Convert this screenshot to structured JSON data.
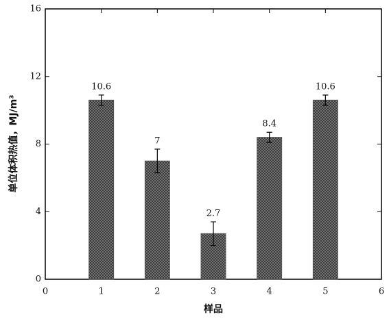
{
  "chart_data": {
    "type": "bar",
    "x_label": "样品",
    "y_label": "单位体积热值，MJ/m³",
    "x": [
      1,
      2,
      3,
      4,
      5
    ],
    "values": [
      10.6,
      7,
      2.7,
      8.4,
      10.6
    ],
    "errors": [
      0.3,
      0.7,
      0.7,
      0.3,
      0.3
    ],
    "color": "#555555",
    "xlim": [
      0,
      6
    ],
    "xticks": [
      0,
      1,
      2,
      3,
      4,
      5,
      6
    ],
    "ylim": [
      0,
      16
    ],
    "yticks": [
      0,
      4,
      8,
      12,
      16
    ],
    "grid": false
  }
}
